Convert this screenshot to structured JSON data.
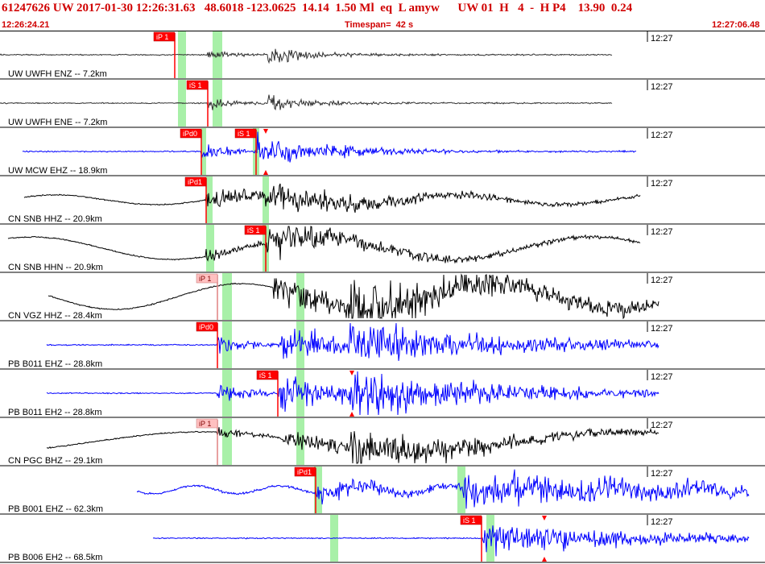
{
  "header": {
    "title": "61247626 UW 2017-01-30 12:26:31.63   48.6018 -123.0625  14.14  1.50 Ml  eq  L amyw      UW 01  H   4  -  H P4    13.90  0.24",
    "start_time": "12:26:24.21",
    "timespan": "Timespan=  42 s",
    "end_time": "12:27:06.48"
  },
  "time_label": "12:27",
  "colors": {
    "header": "#d00000",
    "pick_flag": "#ff0000",
    "pick_flag_light": "#ffc0c0",
    "window": "#a8f0a8",
    "trace_blue": "#0000ff",
    "trace_black": "#000000",
    "trace_gray": "#303030"
  },
  "channels": [
    {
      "label": "UW UWFH ENZ -- 7.2km",
      "color": "gray",
      "picks": [
        {
          "label": "iP 1",
          "light": false
        }
      ]
    },
    {
      "label": "UW UWFH ENE -- 7.2km",
      "color": "gray",
      "picks": [
        {
          "label": "iS 1",
          "light": false
        }
      ]
    },
    {
      "label": "UW MCW EHZ -- 18.9km",
      "color": "blue",
      "picks": [
        {
          "label": "iPd0",
          "light": false
        },
        {
          "label": "iS 1",
          "light": false
        }
      ]
    },
    {
      "label": "CN SNB HHZ -- 20.9km",
      "color": "black",
      "picks": [
        {
          "label": "iPd1",
          "light": false
        }
      ]
    },
    {
      "label": "CN SNB HHN -- 20.9km",
      "color": "black",
      "picks": [
        {
          "label": "iS 1",
          "light": false
        }
      ]
    },
    {
      "label": "CN VGZ HHZ -- 28.4km",
      "color": "black",
      "picks": [
        {
          "label": "iP 1",
          "light": true
        }
      ]
    },
    {
      "label": "PB B011 EHZ -- 28.8km",
      "color": "blue",
      "picks": [
        {
          "label": "iPd0",
          "light": false
        }
      ]
    },
    {
      "label": "PB B011 EH2 -- 28.8km",
      "color": "blue",
      "picks": [
        {
          "label": "iS 1",
          "light": false
        }
      ]
    },
    {
      "label": "CN PGC BHZ -- 29.1km",
      "color": "black",
      "picks": [
        {
          "label": "iP 1",
          "light": true
        }
      ]
    },
    {
      "label": "PB B001 EHZ -- 62.3km",
      "color": "blue",
      "picks": [
        {
          "label": "iPd1",
          "light": false
        }
      ]
    },
    {
      "label": "PB B006 EH2 -- 68.5km",
      "color": "blue",
      "picks": [
        {
          "label": "iS 1",
          "light": false
        }
      ]
    }
  ]
}
